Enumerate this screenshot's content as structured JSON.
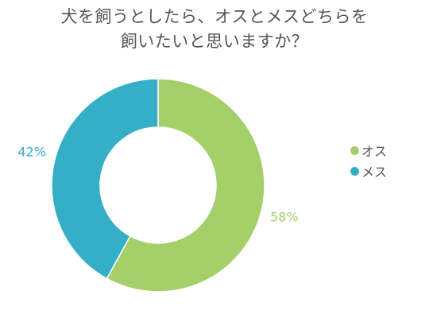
{
  "chart_data": {
    "type": "pie",
    "variant": "donut",
    "title_lines": [
      "犬を飼うとしたら、オスとメスどちらを",
      "飼いたいと思いますか？"
    ],
    "categories": [
      "オス",
      "メス"
    ],
    "values": [
      58,
      42
    ],
    "value_labels": [
      "58%",
      "42%"
    ],
    "colors": [
      "#a5cf68",
      "#35aec8"
    ],
    "legend": "right"
  }
}
